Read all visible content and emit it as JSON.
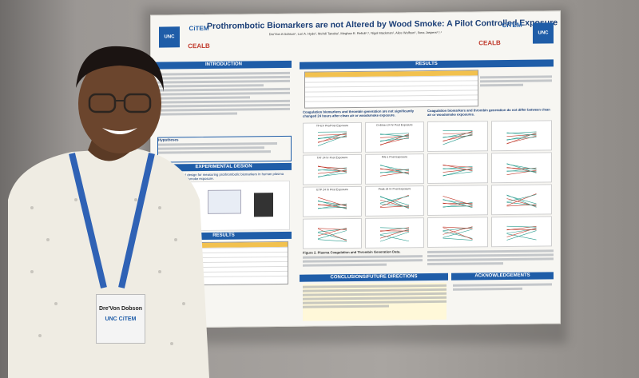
{
  "poster": {
    "title": "Prothrombotic Biomarkers are not Altered by Wood Smoke: A Pilot Controlled Exposure Study",
    "authors": "Dre'Von A Dobson¹, Lori A. Hyde², Mehdi Tanaka¹, Meghan E. Rebuli²,³, Nigel Mackman¹, Alice Wolfson¹, Ilona Jaspers²,³,⁴",
    "logos": {
      "unc": "UNC",
      "citem": "CiTEM",
      "ceal": "CEALB"
    },
    "sections": {
      "introduction": "INTRODUCTION",
      "hypothesis": "Hypotheses",
      "experimental_design": "EXPERIMENTAL DESIGN",
      "results_left": "RESULTS",
      "results_right": "RESULTS",
      "conclusions": "CONCLUSIONS/FUTURE DIRECTIONS",
      "acknowledgements": "ACKNOWLEDGEMENTS"
    },
    "panel_titles": {
      "left": "Coagulation biomarkers and thrombin generation are not significantly changed 24 hours after clean air or woodsmoke exposure.",
      "right": "Coagulation biomarkers and thrombin generation do not differ between clean air or woodsmoke exposures."
    },
    "figure_labels": {
      "fig1": "Fig 1. Experimental design for measuring prothrombotic biomarkers in human plasma after controlled woodsmoke exposure.",
      "fig2": "Figure 2. Plasma Coagulation and Thrombin Generation Data."
    },
    "plot_titles": [
      "TF-EV Pre/Post Exposure",
      "D-dimer 24 hr Post Exposure",
      "TAT 24 hr Post Exposure",
      "PAI-1 Post Exposure",
      "ETP 24 hr Post Exposure",
      "Peak 24 hr Post Exposure"
    ]
  },
  "badge": {
    "name": "Dre'Von Dobson",
    "org": "UNC CiTEM"
  }
}
